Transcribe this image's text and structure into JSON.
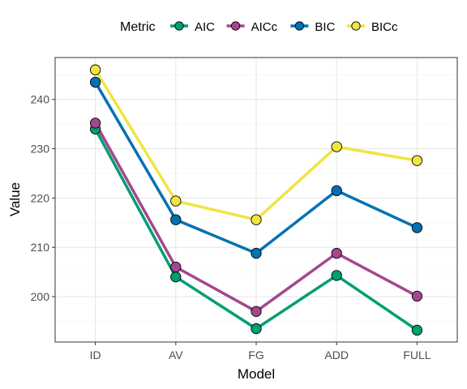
{
  "chart_data": {
    "type": "line",
    "xlabel": "Model",
    "ylabel": "Value",
    "legend_title": "Metric",
    "legend_position": "top",
    "grid": true,
    "categories": [
      "ID",
      "AV",
      "FG",
      "ADD",
      "FULL"
    ],
    "ylim": [
      190.8,
      248.5
    ],
    "yticks": [
      200,
      210,
      220,
      230,
      240
    ],
    "series": [
      {
        "name": "AIC",
        "color": "#009E73",
        "values": [
          234.0,
          204.0,
          193.5,
          204.3,
          193.2
        ]
      },
      {
        "name": "AICc",
        "color": "#A4478F",
        "values": [
          235.2,
          206.0,
          197.0,
          208.8,
          200.1
        ]
      },
      {
        "name": "BIC",
        "color": "#0072B2",
        "values": [
          243.5,
          215.6,
          208.8,
          221.5,
          214.0
        ]
      },
      {
        "name": "BICc",
        "color": "#F0E442",
        "values": [
          246.0,
          219.4,
          215.6,
          230.4,
          227.6
        ]
      }
    ]
  }
}
